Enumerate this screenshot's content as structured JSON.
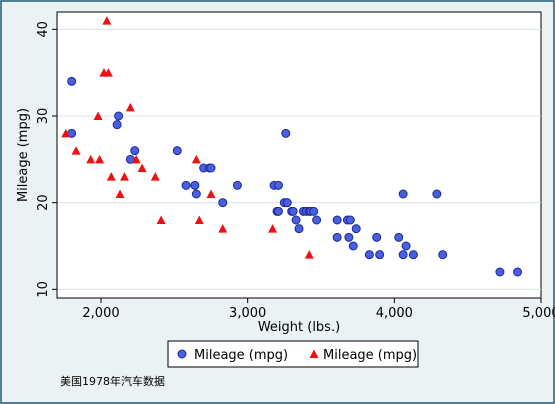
{
  "chart_data": {
    "type": "scatter",
    "title": "",
    "xlabel": "Weight (lbs.)",
    "ylabel": "Mileage (mpg)",
    "xlim": [
      1700,
      5000
    ],
    "ylim": [
      9,
      42
    ],
    "x_ticks": [
      2000,
      3000,
      4000,
      5000
    ],
    "x_tick_labels": [
      "2,000",
      "3,000",
      "4,000",
      "5,000"
    ],
    "y_ticks": [
      10,
      20,
      30,
      40
    ],
    "y_tick_labels": [
      "10",
      "20",
      "30",
      "40"
    ],
    "grid": "horizontal",
    "legend_position": "bottom",
    "series": [
      {
        "name": "Mileage (mpg)",
        "marker": "circle",
        "color": "#4a5fe0",
        "points": [
          [
            1800,
            34
          ],
          [
            1800,
            28
          ],
          [
            2120,
            30
          ],
          [
            2110,
            29
          ],
          [
            2230,
            26
          ],
          [
            2200,
            25
          ],
          [
            2520,
            26
          ],
          [
            2580,
            22
          ],
          [
            2640,
            22
          ],
          [
            2650,
            21
          ],
          [
            2700,
            24
          ],
          [
            2740,
            24
          ],
          [
            2750,
            24
          ],
          [
            2830,
            20
          ],
          [
            2930,
            22
          ],
          [
            3180,
            22
          ],
          [
            3210,
            22
          ],
          [
            3200,
            19
          ],
          [
            3210,
            19
          ],
          [
            3250,
            20
          ],
          [
            3270,
            20
          ],
          [
            3260,
            28
          ],
          [
            3300,
            19
          ],
          [
            3310,
            19
          ],
          [
            3330,
            18
          ],
          [
            3350,
            17
          ],
          [
            3380,
            19
          ],
          [
            3400,
            19
          ],
          [
            3420,
            19
          ],
          [
            3430,
            19
          ],
          [
            3450,
            19
          ],
          [
            3470,
            18
          ],
          [
            3610,
            18
          ],
          [
            3610,
            16
          ],
          [
            3680,
            18
          ],
          [
            3690,
            16
          ],
          [
            3700,
            18
          ],
          [
            3720,
            15
          ],
          [
            3740,
            17
          ],
          [
            3830,
            14
          ],
          [
            3880,
            16
          ],
          [
            3900,
            14
          ],
          [
            4030,
            16
          ],
          [
            4060,
            21
          ],
          [
            4060,
            14
          ],
          [
            4080,
            15
          ],
          [
            4130,
            14
          ],
          [
            4290,
            21
          ],
          [
            4330,
            14
          ],
          [
            4720,
            12
          ],
          [
            4840,
            12
          ]
        ]
      },
      {
        "name": "Mileage (mpg)",
        "marker": "triangle",
        "color": "#ee1111",
        "points": [
          [
            1760,
            28
          ],
          [
            1830,
            26
          ],
          [
            1930,
            25
          ],
          [
            1980,
            30
          ],
          [
            1990,
            25
          ],
          [
            2020,
            35
          ],
          [
            2040,
            41
          ],
          [
            2050,
            35
          ],
          [
            2070,
            23
          ],
          [
            2130,
            21
          ],
          [
            2160,
            23
          ],
          [
            2200,
            31
          ],
          [
            2240,
            25
          ],
          [
            2280,
            24
          ],
          [
            2370,
            23
          ],
          [
            2410,
            18
          ],
          [
            2650,
            25
          ],
          [
            2670,
            18
          ],
          [
            2750,
            21
          ],
          [
            2830,
            17
          ],
          [
            3170,
            17
          ],
          [
            3420,
            14
          ]
        ]
      }
    ],
    "note": "美国1978年汽车数据"
  }
}
